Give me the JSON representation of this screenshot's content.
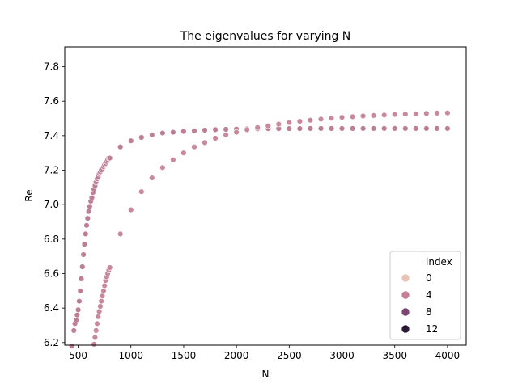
{
  "chart_data": {
    "type": "scatter",
    "title": "The eigenvalues for varying N",
    "xlabel": "N",
    "ylabel": "Re",
    "xlim": [
      373,
      4177
    ],
    "ylim": [
      6.185,
      7.915
    ],
    "xticks": [
      500,
      1000,
      1500,
      2000,
      2500,
      3000,
      3500,
      4000
    ],
    "yticks": [
      6.2,
      6.4,
      6.6,
      6.8,
      7.0,
      7.2,
      7.4,
      7.6,
      7.8
    ],
    "grid": false,
    "legend": {
      "title": "index",
      "placement": "lower right",
      "entries": [
        {
          "label": "0",
          "color": "#eac3b3"
        },
        {
          "label": "4",
          "color": "#c47f95"
        },
        {
          "label": "8",
          "color": "#7d4673"
        },
        {
          "label": "12",
          "color": "#2d1a36"
        }
      ]
    },
    "series": [
      {
        "index": 4,
        "color": "#bd7f96",
        "x": [
          440,
          460,
          470,
          480,
          490,
          500,
          510,
          520,
          530,
          540,
          550,
          560,
          570,
          580,
          590,
          600,
          610,
          620,
          630,
          640,
          650,
          660,
          670,
          680,
          690,
          700,
          710,
          720,
          730,
          740,
          750,
          760,
          770,
          780,
          790,
          800,
          900,
          1000,
          1100,
          1200,
          1300,
          1400,
          1500,
          1600,
          1700,
          1800,
          1900,
          2000,
          2100,
          2200,
          2300,
          2400,
          2500,
          2600,
          2700,
          2800,
          2900,
          3000,
          3100,
          3200,
          3300,
          3400,
          3500,
          3600,
          3700,
          3800,
          3900,
          4000
        ],
        "y": [
          6.18,
          6.27,
          6.31,
          6.33,
          6.36,
          6.39,
          6.44,
          6.5,
          6.57,
          6.64,
          6.71,
          6.77,
          6.83,
          6.88,
          6.92,
          6.96,
          6.99,
          7.02,
          7.04,
          7.07,
          7.09,
          7.11,
          7.13,
          7.15,
          7.16,
          7.18,
          7.19,
          7.2,
          7.21,
          7.22,
          7.23,
          7.24,
          7.25,
          7.26,
          7.27,
          7.27,
          7.335,
          7.37,
          7.39,
          7.405,
          7.415,
          7.42,
          7.425,
          7.428,
          7.432,
          7.435,
          7.437,
          7.438,
          7.44,
          7.44,
          7.441,
          7.441,
          7.441,
          7.441,
          7.442,
          7.442,
          7.442,
          7.442,
          7.442,
          7.442,
          7.442,
          7.442,
          7.442,
          7.442,
          7.442,
          7.442,
          7.442,
          7.442
        ]
      },
      {
        "index": 5,
        "color": "#c9899c",
        "x": [
          650,
          660,
          670,
          680,
          690,
          700,
          710,
          720,
          730,
          740,
          750,
          760,
          770,
          780,
          790,
          800,
          900,
          1000,
          1100,
          1200,
          1300,
          1400,
          1500,
          1600,
          1700,
          1800,
          1900,
          2000,
          2100,
          2200,
          2300,
          2400,
          2500,
          2600,
          2700,
          2800,
          2900,
          3000,
          3100,
          3200,
          3300,
          3400,
          3500,
          3600,
          3700,
          3800,
          3900,
          4000
        ],
        "y": [
          6.19,
          6.23,
          6.27,
          6.31,
          6.35,
          6.38,
          6.41,
          6.44,
          6.47,
          6.5,
          6.53,
          6.56,
          6.58,
          6.6,
          6.62,
          6.635,
          6.83,
          6.97,
          7.075,
          7.155,
          7.215,
          7.26,
          7.3,
          7.335,
          7.36,
          7.385,
          7.405,
          7.42,
          7.435,
          7.447,
          7.457,
          7.467,
          7.476,
          7.483,
          7.49,
          7.496,
          7.501,
          7.506,
          7.51,
          7.514,
          7.517,
          7.52,
          7.523,
          7.525,
          7.527,
          7.529,
          7.531,
          7.532
        ]
      }
    ]
  }
}
